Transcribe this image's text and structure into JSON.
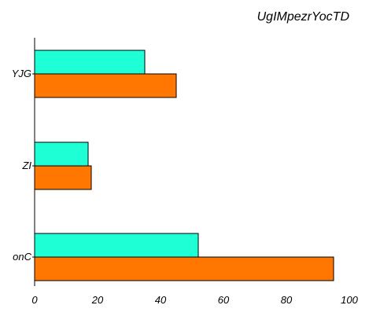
{
  "chart_data": {
    "type": "bar",
    "orientation": "horizontal",
    "title": "UgIMpezrYocTD",
    "categories": [
      "YJG",
      "ZI",
      "onC"
    ],
    "series": [
      {
        "color": "#1effd6",
        "values": [
          35,
          17,
          52
        ]
      },
      {
        "color": "#ff7600",
        "values": [
          45,
          18,
          95
        ]
      }
    ],
    "xlim": [
      0,
      100
    ],
    "x_ticks": [
      0,
      20,
      40,
      60,
      80,
      100
    ],
    "grid": false,
    "legend": "none"
  }
}
